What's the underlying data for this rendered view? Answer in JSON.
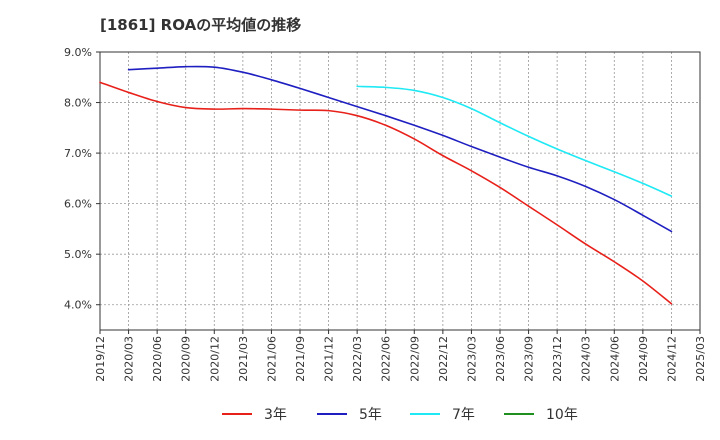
{
  "title": "[1861]  ROAの平均値の推移",
  "colors": {
    "background": "#ffffff",
    "grid": "#999999",
    "axis": "#333333",
    "series_3y": "#e8201a",
    "series_5y": "#1f1fc1",
    "series_7y": "#1ee9f4",
    "series_10y": "#1f8f1f"
  },
  "chart_data": {
    "type": "line",
    "title": "[1861]  ROAの平均値の推移",
    "xlabel": "",
    "ylabel": "",
    "ylim": [
      3.5,
      9.0
    ],
    "yticks": [
      4.0,
      5.0,
      6.0,
      7.0,
      8.0,
      9.0
    ],
    "ytick_labels": [
      "4.0%",
      "5.0%",
      "6.0%",
      "7.0%",
      "8.0%",
      "9.0%"
    ],
    "categories": [
      "2019/12",
      "2020/03",
      "2020/06",
      "2020/09",
      "2020/12",
      "2021/03",
      "2021/06",
      "2021/09",
      "2021/12",
      "2022/03",
      "2022/06",
      "2022/09",
      "2022/12",
      "2023/03",
      "2023/06",
      "2023/09",
      "2023/12",
      "2024/03",
      "2024/06",
      "2024/09",
      "2024/12",
      "2025/03"
    ],
    "grid": true,
    "legend_position": "bottom",
    "series": [
      {
        "name": "3年",
        "color": "#e8201a",
        "values": [
          8.4,
          8.2,
          8.02,
          7.9,
          7.87,
          7.88,
          7.87,
          7.85,
          7.84,
          7.74,
          7.55,
          7.28,
          6.95,
          6.65,
          6.32,
          5.95,
          5.58,
          5.2,
          4.85,
          4.47,
          4.02,
          null
        ]
      },
      {
        "name": "5年",
        "color": "#1f1fc1",
        "values": [
          null,
          8.65,
          8.68,
          8.71,
          8.7,
          8.6,
          8.45,
          8.28,
          8.1,
          7.92,
          7.74,
          7.55,
          7.35,
          7.13,
          6.92,
          6.72,
          6.55,
          6.34,
          6.08,
          5.77,
          5.45,
          null
        ]
      },
      {
        "name": "7年",
        "color": "#1ee9f4",
        "values": [
          null,
          null,
          null,
          null,
          null,
          null,
          null,
          null,
          null,
          8.32,
          8.3,
          8.24,
          8.1,
          7.88,
          7.6,
          7.33,
          7.08,
          6.85,
          6.63,
          6.4,
          6.15,
          null
        ]
      },
      {
        "name": "10年",
        "color": "#1f8f1f",
        "values": [
          null,
          null,
          null,
          null,
          null,
          null,
          null,
          null,
          null,
          null,
          null,
          null,
          null,
          null,
          null,
          null,
          null,
          null,
          null,
          null,
          null,
          null
        ]
      }
    ]
  }
}
